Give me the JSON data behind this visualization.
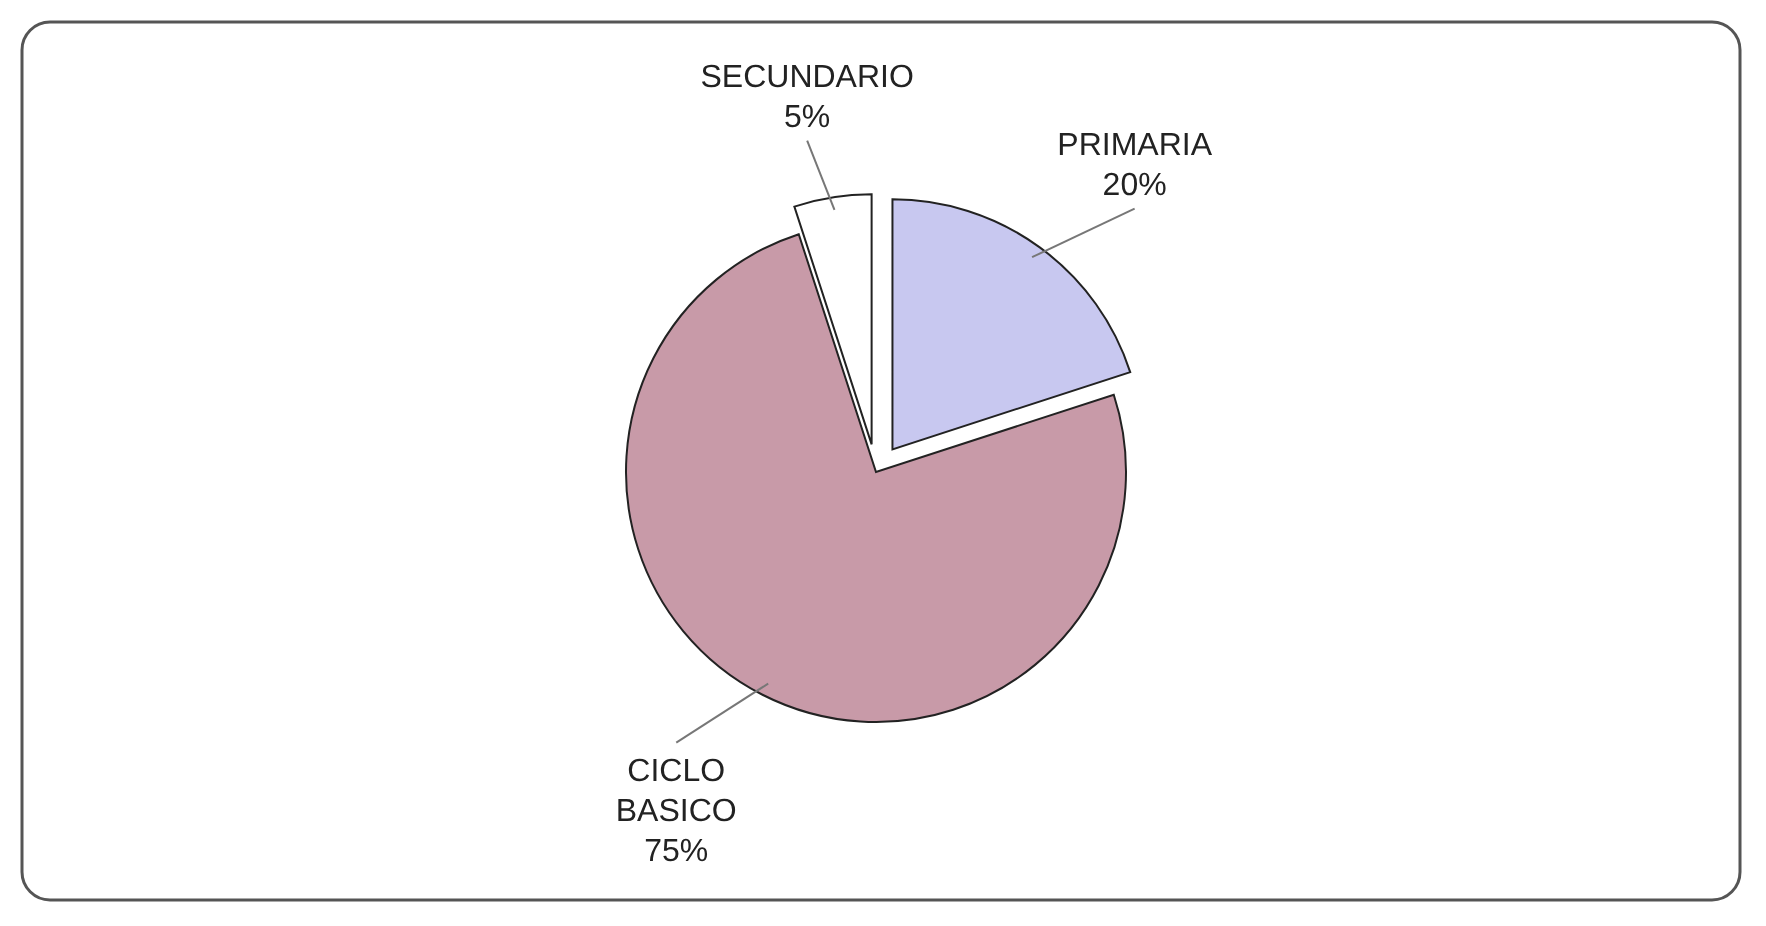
{
  "chart_data": {
    "type": "pie",
    "categories": [
      "PRIMARIA",
      "CICLO BASICO",
      "SECUNDARIO"
    ],
    "values": [
      20,
      75,
      5
    ],
    "colors": [
      "#c8c8f0",
      "#c89aa8",
      "#ffffff"
    ],
    "value_labels": [
      "20%",
      "75%",
      "5%"
    ]
  }
}
